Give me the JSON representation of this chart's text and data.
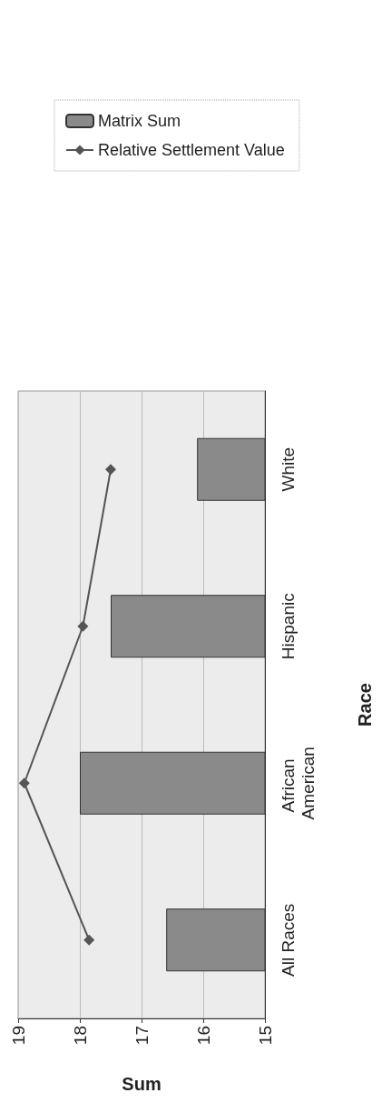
{
  "chart_data": {
    "type": "bar",
    "orientation": "horizontal",
    "categories": [
      "White",
      "Hispanic",
      "African American",
      "All Races"
    ],
    "xlabel": "Sum",
    "ylabel": "Race",
    "xlim": [
      19,
      15
    ],
    "xticks": [
      19,
      18,
      17,
      16,
      15
    ],
    "grid": "x",
    "legend": "top",
    "marker": "diamond",
    "series": [
      {
        "name": "Matrix Sum",
        "color": "#8a8a8a",
        "values": [
          16.1,
          17.5,
          18.0,
          16.6
        ]
      },
      {
        "name": "Relative Settlement Value",
        "type": "line",
        "color": "#555555",
        "values": [
          17.5,
          17.95,
          18.9,
          17.85
        ]
      }
    ]
  }
}
